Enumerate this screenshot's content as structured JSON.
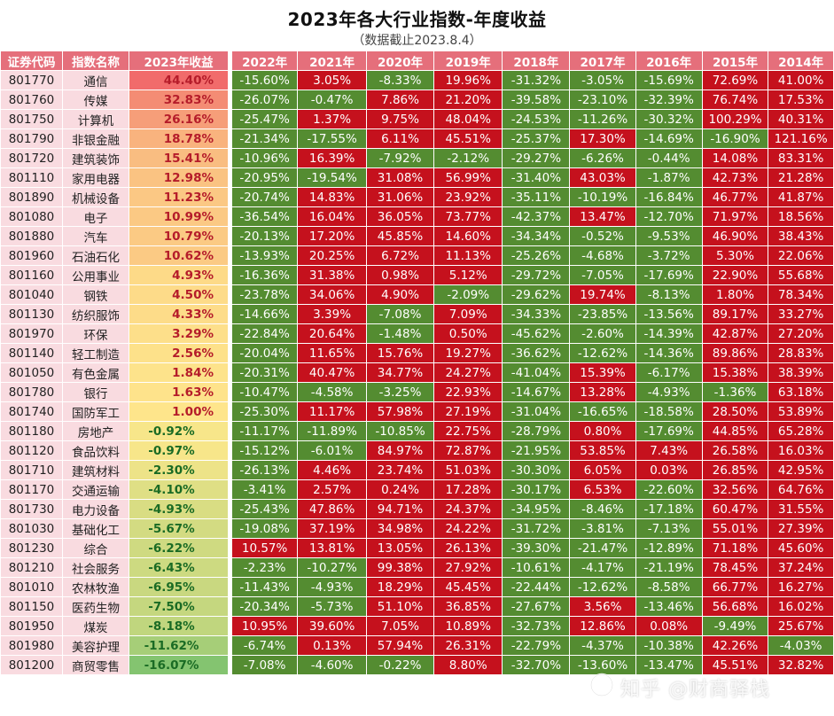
{
  "title": "2023年各大行业指数-年度收益",
  "subtitle": "（数据截止2023.8.4）",
  "left_headers": [
    "证券代码",
    "指数名称",
    "2023年收益"
  ],
  "year_headers": [
    "2022年",
    "2021年",
    "2020年",
    "2019年",
    "2018年",
    "2017年",
    "2016年",
    "2015年",
    "2014年"
  ],
  "colors": {
    "positive": "#c5111d",
    "negative": "#548c31",
    "header": "#e56f7b",
    "code_bg": "#f9dbe0"
  },
  "rows": [
    {
      "code": "801770",
      "name": "通信",
      "y2023": "44.40%",
      "v2023": 44.4,
      "years": [
        "-15.60%",
        "3.05%",
        "-8.33%",
        "19.96%",
        "-31.32%",
        "-3.05%",
        "-15.69%",
        "72.69%",
        "41.00%"
      ]
    },
    {
      "code": "801760",
      "name": "传媒",
      "y2023": "32.83%",
      "v2023": 32.83,
      "years": [
        "-26.07%",
        "-0.47%",
        "7.86%",
        "21.20%",
        "-39.58%",
        "-23.10%",
        "-32.39%",
        "76.74%",
        "17.53%"
      ]
    },
    {
      "code": "801750",
      "name": "计算机",
      "y2023": "26.16%",
      "v2023": 26.16,
      "years": [
        "-25.47%",
        "1.37%",
        "9.75%",
        "48.04%",
        "-24.53%",
        "-11.26%",
        "-30.32%",
        "100.29%",
        "40.31%"
      ]
    },
    {
      "code": "801790",
      "name": "非银金融",
      "y2023": "18.78%",
      "v2023": 18.78,
      "years": [
        "-21.34%",
        "-17.55%",
        "6.11%",
        "45.51%",
        "-25.37%",
        "17.30%",
        "-14.69%",
        "-16.90%",
        "121.16%"
      ]
    },
    {
      "code": "801720",
      "name": "建筑装饰",
      "y2023": "15.41%",
      "v2023": 15.41,
      "years": [
        "-10.96%",
        "16.39%",
        "-7.92%",
        "-2.12%",
        "-29.27%",
        "-6.26%",
        "-0.44%",
        "14.08%",
        "83.31%"
      ]
    },
    {
      "code": "801110",
      "name": "家用电器",
      "y2023": "12.98%",
      "v2023": 12.98,
      "years": [
        "-20.95%",
        "-19.54%",
        "31.08%",
        "56.99%",
        "-31.40%",
        "43.03%",
        "-1.87%",
        "42.73%",
        "21.28%"
      ]
    },
    {
      "code": "801890",
      "name": "机械设备",
      "y2023": "11.23%",
      "v2023": 11.23,
      "years": [
        "-20.74%",
        "14.83%",
        "31.06%",
        "23.92%",
        "-35.11%",
        "-10.19%",
        "-16.84%",
        "46.77%",
        "41.87%"
      ]
    },
    {
      "code": "801080",
      "name": "电子",
      "y2023": "10.99%",
      "v2023": 10.99,
      "years": [
        "-36.54%",
        "16.04%",
        "36.05%",
        "73.77%",
        "-42.37%",
        "13.47%",
        "-12.70%",
        "71.97%",
        "18.56%"
      ]
    },
    {
      "code": "801880",
      "name": "汽车",
      "y2023": "10.79%",
      "v2023": 10.79,
      "years": [
        "-20.13%",
        "17.20%",
        "45.85%",
        "14.60%",
        "-34.34%",
        "-0.52%",
        "-9.53%",
        "46.90%",
        "38.43%"
      ]
    },
    {
      "code": "801960",
      "name": "石油石化",
      "y2023": "10.62%",
      "v2023": 10.62,
      "years": [
        "-13.93%",
        "20.25%",
        "6.72%",
        "11.13%",
        "-25.26%",
        "-4.68%",
        "-3.72%",
        "5.30%",
        "22.06%"
      ]
    },
    {
      "code": "801160",
      "name": "公用事业",
      "y2023": "4.93%",
      "v2023": 4.93,
      "years": [
        "-16.36%",
        "31.38%",
        "0.98%",
        "5.12%",
        "-29.72%",
        "-7.05%",
        "-17.69%",
        "22.90%",
        "55.68%"
      ]
    },
    {
      "code": "801040",
      "name": "钢铁",
      "y2023": "4.50%",
      "v2023": 4.5,
      "years": [
        "-23.78%",
        "34.06%",
        "4.90%",
        "-2.09%",
        "-29.62%",
        "19.74%",
        "-8.13%",
        "1.80%",
        "78.34%"
      ]
    },
    {
      "code": "801130",
      "name": "纺织服饰",
      "y2023": "4.33%",
      "v2023": 4.33,
      "years": [
        "-14.66%",
        "3.39%",
        "-7.08%",
        "7.09%",
        "-34.33%",
        "-23.85%",
        "-13.56%",
        "89.17%",
        "33.27%"
      ]
    },
    {
      "code": "801970",
      "name": "环保",
      "y2023": "3.29%",
      "v2023": 3.29,
      "years": [
        "-22.84%",
        "20.64%",
        "-1.48%",
        "0.50%",
        "-45.62%",
        "-2.60%",
        "-14.39%",
        "42.87%",
        "27.20%"
      ]
    },
    {
      "code": "801140",
      "name": "轻工制造",
      "y2023": "2.56%",
      "v2023": 2.56,
      "years": [
        "-20.04%",
        "11.65%",
        "15.76%",
        "19.27%",
        "-36.62%",
        "-12.62%",
        "-14.36%",
        "89.86%",
        "28.83%"
      ]
    },
    {
      "code": "801050",
      "name": "有色金属",
      "y2023": "1.84%",
      "v2023": 1.84,
      "years": [
        "-20.31%",
        "40.47%",
        "34.77%",
        "24.27%",
        "-41.04%",
        "15.39%",
        "-6.17%",
        "15.38%",
        "38.39%"
      ]
    },
    {
      "code": "801780",
      "name": "银行",
      "y2023": "1.63%",
      "v2023": 1.63,
      "years": [
        "-10.47%",
        "-4.58%",
        "-3.25%",
        "22.93%",
        "-14.67%",
        "13.28%",
        "-4.93%",
        "-1.36%",
        "63.18%"
      ]
    },
    {
      "code": "801740",
      "name": "国防军工",
      "y2023": "1.00%",
      "v2023": 1.0,
      "years": [
        "-25.30%",
        "11.17%",
        "57.98%",
        "27.19%",
        "-31.04%",
        "-16.65%",
        "-18.58%",
        "28.50%",
        "53.89%"
      ]
    },
    {
      "code": "801180",
      "name": "房地产",
      "y2023": "-0.92%",
      "v2023": -0.92,
      "years": [
        "-11.17%",
        "-11.89%",
        "-10.85%",
        "22.75%",
        "-28.79%",
        "0.80%",
        "-17.69%",
        "44.85%",
        "65.28%"
      ]
    },
    {
      "code": "801120",
      "name": "食品饮料",
      "y2023": "-0.97%",
      "v2023": -0.97,
      "years": [
        "-15.12%",
        "-6.01%",
        "84.97%",
        "72.87%",
        "-21.95%",
        "53.85%",
        "7.43%",
        "26.58%",
        "16.03%"
      ]
    },
    {
      "code": "801710",
      "name": "建筑材料",
      "y2023": "-2.30%",
      "v2023": -2.3,
      "years": [
        "-26.13%",
        "4.46%",
        "23.74%",
        "51.03%",
        "-30.30%",
        "6.05%",
        "0.03%",
        "26.85%",
        "42.95%"
      ]
    },
    {
      "code": "801170",
      "name": "交通运输",
      "y2023": "-4.10%",
      "v2023": -4.1,
      "years": [
        "-3.41%",
        "2.57%",
        "0.24%",
        "17.28%",
        "-30.17%",
        "6.53%",
        "-22.60%",
        "32.56%",
        "64.76%"
      ]
    },
    {
      "code": "801730",
      "name": "电力设备",
      "y2023": "-4.93%",
      "v2023": -4.93,
      "years": [
        "-25.43%",
        "47.86%",
        "94.71%",
        "24.37%",
        "-34.95%",
        "-8.46%",
        "-17.18%",
        "60.47%",
        "31.55%"
      ]
    },
    {
      "code": "801030",
      "name": "基础化工",
      "y2023": "-5.67%",
      "v2023": -5.67,
      "years": [
        "-19.08%",
        "37.19%",
        "34.98%",
        "24.22%",
        "-31.72%",
        "-3.81%",
        "-7.13%",
        "55.01%",
        "27.39%"
      ]
    },
    {
      "code": "801230",
      "name": "综合",
      "y2023": "-6.22%",
      "v2023": -6.22,
      "years": [
        "10.57%",
        "13.81%",
        "13.05%",
        "26.13%",
        "-39.30%",
        "-21.47%",
        "-12.89%",
        "71.18%",
        "45.60%"
      ]
    },
    {
      "code": "801210",
      "name": "社会服务",
      "y2023": "-6.43%",
      "v2023": -6.43,
      "years": [
        "-2.23%",
        "-10.27%",
        "99.38%",
        "27.92%",
        "-10.61%",
        "-4.17%",
        "-21.19%",
        "78.45%",
        "37.24%"
      ]
    },
    {
      "code": "801010",
      "name": "农林牧渔",
      "y2023": "-6.95%",
      "v2023": -6.95,
      "years": [
        "-11.43%",
        "-4.93%",
        "18.29%",
        "45.45%",
        "-22.44%",
        "-12.62%",
        "-8.58%",
        "66.77%",
        "16.27%"
      ]
    },
    {
      "code": "801150",
      "name": "医药生物",
      "y2023": "-7.50%",
      "v2023": -7.5,
      "years": [
        "-20.34%",
        "-5.73%",
        "51.10%",
        "36.85%",
        "-27.67%",
        "3.56%",
        "-13.46%",
        "56.68%",
        "16.02%"
      ]
    },
    {
      "code": "801950",
      "name": "煤炭",
      "y2023": "-8.18%",
      "v2023": -8.18,
      "years": [
        "10.95%",
        "39.60%",
        "7.05%",
        "10.89%",
        "-32.73%",
        "12.86%",
        "0.08%",
        "-9.49%",
        "25.67%"
      ]
    },
    {
      "code": "801980",
      "name": "美容护理",
      "y2023": "-11.62%",
      "v2023": -11.62,
      "years": [
        "-6.74%",
        "0.13%",
        "57.94%",
        "26.31%",
        "-22.79%",
        "-4.37%",
        "-10.38%",
        "42.26%",
        "-4.03%"
      ]
    },
    {
      "code": "801200",
      "name": "商贸零售",
      "y2023": "-16.07%",
      "v2023": -16.07,
      "years": [
        "-7.08%",
        "-4.60%",
        "-0.22%",
        "8.80%",
        "-32.70%",
        "-13.60%",
        "-13.47%",
        "45.51%",
        "32.82%"
      ]
    }
  ],
  "watermark": "知乎 @财商驿栈",
  "watermark_icon": "zhihu-logo-icon"
}
